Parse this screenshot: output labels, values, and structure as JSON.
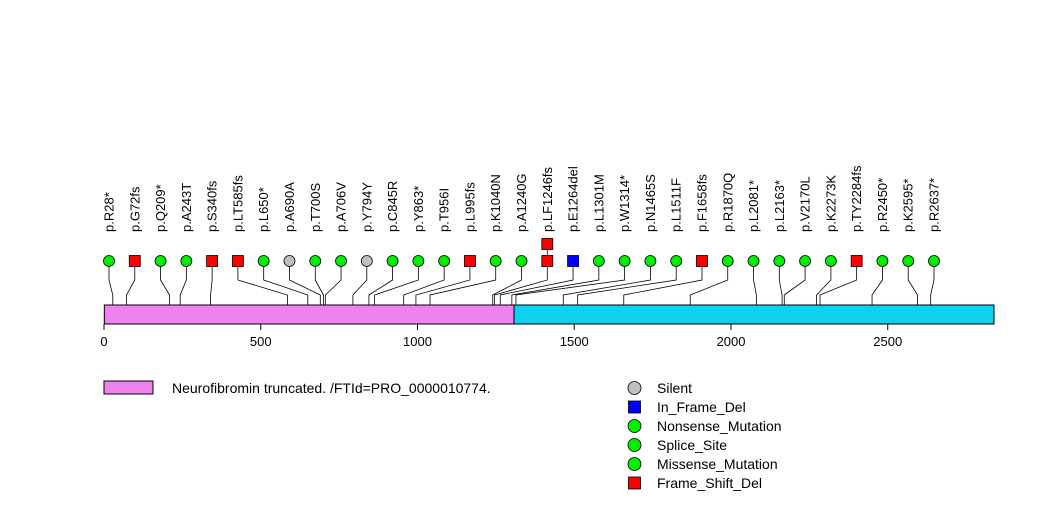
{
  "chart_data": {
    "type": "lollipop",
    "protein_length": 2839,
    "x_ticks": [
      0,
      500,
      1000,
      1500,
      2000,
      2500
    ],
    "domains": [
      {
        "label": "Neurofibromin truncated. /FTId=PRO_0000010774.",
        "start": 1,
        "end": 1308,
        "color": "#EE82EE"
      },
      {
        "label": "",
        "start": 1308,
        "end": 2839,
        "color": "#0DD1EE"
      }
    ],
    "mutations": [
      {
        "label": "p.R28*",
        "pos": 28,
        "type": "Nonsense_Mutation"
      },
      {
        "label": "p.G72fs",
        "pos": 72,
        "type": "Frame_Shift_Del"
      },
      {
        "label": "p.Q209*",
        "pos": 209,
        "type": "Nonsense_Mutation"
      },
      {
        "label": "p.A243T",
        "pos": 243,
        "type": "Missense_Mutation"
      },
      {
        "label": "p.S340fs",
        "pos": 340,
        "type": "Frame_Shift_Del"
      },
      {
        "label": "p.LT585fs",
        "pos": 585,
        "type": "Frame_Shift_Del"
      },
      {
        "label": "p.L650*",
        "pos": 650,
        "type": "Nonsense_Mutation"
      },
      {
        "label": "p.A690A",
        "pos": 690,
        "type": "Silent"
      },
      {
        "label": "p.T700S",
        "pos": 700,
        "type": "Missense_Mutation"
      },
      {
        "label": "p.A706V",
        "pos": 706,
        "type": "Missense_Mutation"
      },
      {
        "label": "p.Y794Y",
        "pos": 794,
        "type": "Silent"
      },
      {
        "label": "p.C845R",
        "pos": 845,
        "type": "Missense_Mutation"
      },
      {
        "label": "p.Y863*",
        "pos": 863,
        "type": "Nonsense_Mutation"
      },
      {
        "label": "p.T956I",
        "pos": 956,
        "type": "Missense_Mutation"
      },
      {
        "label": "p.L995fs",
        "pos": 995,
        "type": "Frame_Shift_Del"
      },
      {
        "label": "p.K1040N",
        "pos": 1040,
        "type": "Missense_Mutation"
      },
      {
        "label": "p.A1240G",
        "pos": 1240,
        "type": "Missense_Mutation"
      },
      {
        "label": "p.LF1246fs",
        "pos": 1246,
        "type": "Frame_Shift_Del",
        "count": 2
      },
      {
        "label": "p.E1264del",
        "pos": 1264,
        "type": "In_Frame_Del"
      },
      {
        "label": "p.L1301M",
        "pos": 1301,
        "type": "Missense_Mutation"
      },
      {
        "label": "p.W1314*",
        "pos": 1314,
        "type": "Nonsense_Mutation"
      },
      {
        "label": "p.N1465S",
        "pos": 1465,
        "type": "Missense_Mutation"
      },
      {
        "label": "p.L1511F",
        "pos": 1511,
        "type": "Missense_Mutation"
      },
      {
        "label": "p.F1658fs",
        "pos": 1658,
        "type": "Frame_Shift_Del"
      },
      {
        "label": "p.R1870Q",
        "pos": 1870,
        "type": "Missense_Mutation"
      },
      {
        "label": "p.L2081*",
        "pos": 2081,
        "type": "Nonsense_Mutation"
      },
      {
        "label": "p.L2163*",
        "pos": 2163,
        "type": "Nonsense_Mutation"
      },
      {
        "label": "p.V2170L",
        "pos": 2170,
        "type": "Missense_Mutation"
      },
      {
        "label": "p.K2273K",
        "pos": 2273,
        "type": "Splice_Site"
      },
      {
        "label": "p.TY2284fs",
        "pos": 2284,
        "type": "Frame_Shift_Del"
      },
      {
        "label": "p.R2450*",
        "pos": 2450,
        "type": "Nonsense_Mutation"
      },
      {
        "label": "p.K2595*",
        "pos": 2595,
        "type": "Nonsense_Mutation"
      },
      {
        "label": "p.R2637*",
        "pos": 2637,
        "type": "Nonsense_Mutation"
      }
    ],
    "legend": [
      {
        "label": "Silent",
        "shape": "circle",
        "color": "#C0C0C0"
      },
      {
        "label": "In_Frame_Del",
        "shape": "square",
        "color": "#0000FF"
      },
      {
        "label": "Nonsense_Mutation",
        "shape": "circle",
        "color": "#00EE00"
      },
      {
        "label": "Splice_Site",
        "shape": "circle",
        "color": "#00EE00"
      },
      {
        "label": "Missense_Mutation",
        "shape": "circle",
        "color": "#00EE00"
      },
      {
        "label": "Frame_Shift_Del",
        "shape": "square",
        "color": "#FF0000"
      }
    ]
  }
}
